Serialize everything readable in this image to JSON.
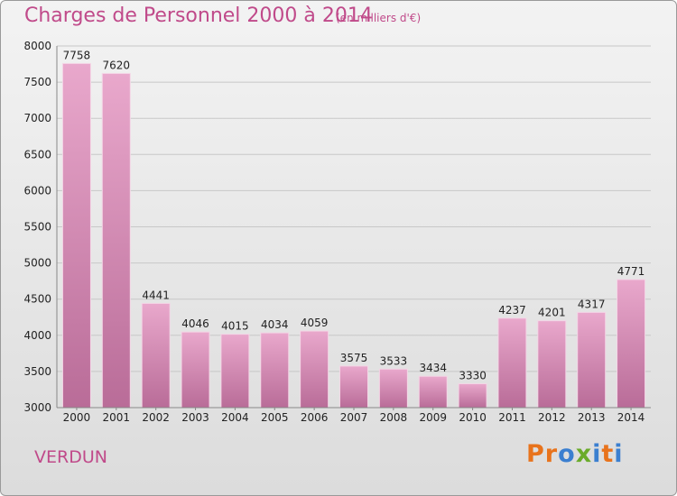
{
  "header": {
    "title": "Charges de Personnel 2000 à 2014",
    "subtitle": "(en milliers d'€)"
  },
  "footer": {
    "city": "VERDUN",
    "brand": "Proxiti"
  },
  "colors": {
    "bar_top": "#e9a8cc",
    "bar_bottom": "#b96c98",
    "title": "#c04a8a",
    "brand_letters": [
      "#e8731c",
      "#e8731c",
      "#3b7fd0",
      "#6aab2a",
      "#3b7fd0",
      "#e8731c",
      "#3b7fd0"
    ]
  },
  "chart_data": {
    "type": "bar",
    "title": "Charges de Personnel 2000 à 2014",
    "categories": [
      "2000",
      "2001",
      "2002",
      "2003",
      "2004",
      "2005",
      "2006",
      "2007",
      "2008",
      "2009",
      "2010",
      "2011",
      "2012",
      "2013",
      "2014"
    ],
    "values": [
      7758,
      7620,
      4441,
      4046,
      4015,
      4034,
      4059,
      3575,
      3533,
      3434,
      3330,
      4237,
      4201,
      4317,
      4771
    ],
    "ylim": [
      3000,
      8000
    ],
    "yticks": [
      3000,
      3500,
      4000,
      4500,
      5000,
      5500,
      6000,
      6500,
      7000,
      7500,
      8000
    ],
    "grid": true,
    "legend": "none"
  }
}
